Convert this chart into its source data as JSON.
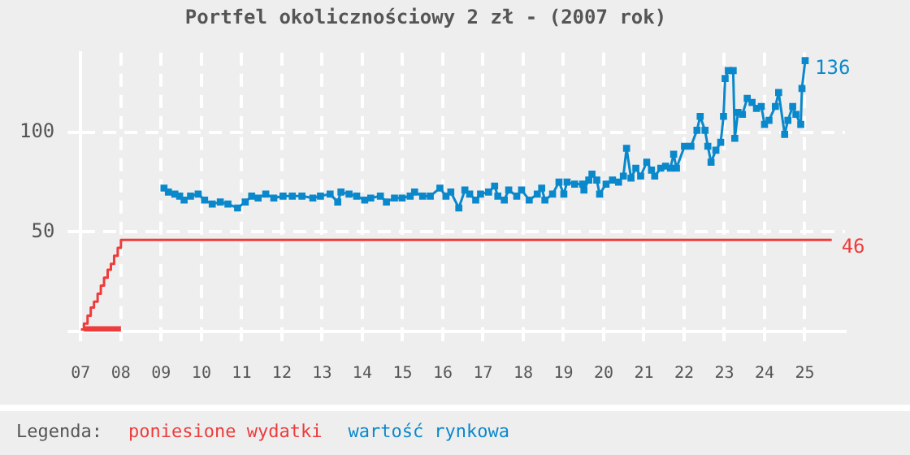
{
  "chart_data": {
    "type": "line",
    "title": "Portfel okolicznościowy 2 zł - (2007 rok)",
    "legend_title": "Legenda:",
    "legend": "bottom",
    "grid": true,
    "marker": "square",
    "line_style": "solid",
    "xlim": [
      2007,
      2026
    ],
    "xticks": [
      {
        "value": 2007,
        "label": "07"
      },
      {
        "value": 2008,
        "label": "08"
      },
      {
        "value": 2009,
        "label": "09"
      },
      {
        "value": 2010,
        "label": "10"
      },
      {
        "value": 2011,
        "label": "11"
      },
      {
        "value": 2012,
        "label": "12"
      },
      {
        "value": 2013,
        "label": "13"
      },
      {
        "value": 2014,
        "label": "14"
      },
      {
        "value": 2015,
        "label": "15"
      },
      {
        "value": 2016,
        "label": "16"
      },
      {
        "value": 2017,
        "label": "17"
      },
      {
        "value": 2018,
        "label": "18"
      },
      {
        "value": 2019,
        "label": "19"
      },
      {
        "value": 2020,
        "label": "20"
      },
      {
        "value": 2021,
        "label": "21"
      },
      {
        "value": 2022,
        "label": "22"
      },
      {
        "value": 2023,
        "label": "23"
      },
      {
        "value": 2024,
        "label": "24"
      },
      {
        "value": 2025,
        "label": "25"
      }
    ],
    "ylim": [
      0,
      140
    ],
    "yticks": [
      {
        "value": 0,
        "label": null
      },
      50,
      100
    ],
    "series": [
      {
        "type": "step",
        "marker": "none",
        "color": "#ee3b3b",
        "x": [
          2007.08,
          2008
        ],
        "values": [
          1,
          1
        ]
      },
      {
        "type": "step",
        "marker": "none",
        "name": "poniesione wydatki",
        "color": "#ee3b3b",
        "x": [
          2007,
          2007.08,
          2007.17,
          2007.25,
          2007.33,
          2007.42,
          2007.5,
          2007.58,
          2007.67,
          2007.75,
          2007.83,
          2007.92,
          2008,
          2025.67
        ],
        "values": [
          1,
          4,
          8,
          12,
          15,
          19,
          23,
          27,
          31,
          34,
          38,
          42,
          46,
          46
        ],
        "value_labels": [
          null,
          null,
          null,
          null,
          null,
          null,
          null,
          null,
          null,
          null,
          null,
          null,
          null,
          "46"
        ]
      },
      {
        "name": "wartość rynkowa",
        "color": "#0a88cc",
        "x": [
          2009.07,
          2009.18,
          2009.34,
          2009.46,
          2009.57,
          2009.73,
          2009.92,
          2010.08,
          2010.27,
          2010.47,
          2010.66,
          2010.9,
          2011.09,
          2011.25,
          2011.41,
          2011.6,
          2011.8,
          2012.03,
          2012.26,
          2012.5,
          2012.77,
          2012.96,
          2013.2,
          2013.39,
          2013.47,
          2013.67,
          2013.86,
          2014.06,
          2014.21,
          2014.45,
          2014.6,
          2014.8,
          2014.99,
          2015.19,
          2015.3,
          2015.5,
          2015.69,
          2015.93,
          2016.08,
          2016.2,
          2016.4,
          2016.55,
          2016.67,
          2016.82,
          2016.94,
          2017.14,
          2017.29,
          2017.37,
          2017.53,
          2017.64,
          2017.84,
          2017.96,
          2018.15,
          2018.35,
          2018.46,
          2018.54,
          2018.73,
          2018.89,
          2019.01,
          2019.09,
          2019.28,
          2019.48,
          2019.51,
          2019.63,
          2019.71,
          2019.83,
          2019.9,
          2020.06,
          2020.22,
          2020.37,
          2020.49,
          2020.57,
          2020.68,
          2020.8,
          2020.92,
          2021.07,
          2021.19,
          2021.27,
          2021.42,
          2021.54,
          2021.66,
          2021.74,
          2021.81,
          2022.01,
          2022.17,
          2022.32,
          2022.4,
          2022.52,
          2022.59,
          2022.67,
          2022.79,
          2022.91,
          2022.98,
          2023.02,
          2023.1,
          2023.22,
          2023.26,
          2023.34,
          2023.45,
          2023.57,
          2023.69,
          2023.8,
          2023.92,
          2024,
          2024.11,
          2024.27,
          2024.35,
          2024.5,
          2024.58,
          2024.7,
          2024.78,
          2024.9,
          2024.93,
          2025.01
        ],
        "values": [
          72,
          70,
          69,
          68,
          66,
          68,
          69,
          66,
          64,
          65,
          64,
          62,
          65,
          68,
          67,
          69,
          67,
          68,
          68,
          68,
          67,
          68,
          69,
          65,
          70,
          69,
          68,
          66,
          67,
          68,
          65,
          67,
          67,
          68,
          70,
          68,
          68,
          72,
          68,
          70,
          62,
          71,
          69,
          66,
          69,
          70,
          73,
          68,
          66,
          71,
          68,
          71,
          66,
          69,
          72,
          66,
          69,
          75,
          69,
          75,
          74,
          74,
          71,
          76,
          79,
          76,
          69,
          74,
          76,
          75,
          78,
          92,
          77,
          82,
          78,
          85,
          81,
          78,
          82,
          83,
          82,
          89,
          82,
          93,
          93,
          101,
          108,
          101,
          93,
          85,
          91,
          95,
          108,
          127,
          131,
          131,
          97,
          110,
          109,
          117,
          115,
          112,
          113,
          104,
          106,
          113,
          120,
          99,
          106,
          113,
          109,
          104,
          122,
          136
        ],
        "value_labels": [
          null,
          null,
          null,
          null,
          null,
          null,
          null,
          null,
          null,
          null,
          null,
          null,
          null,
          null,
          null,
          null,
          null,
          null,
          null,
          null,
          null,
          null,
          null,
          null,
          null,
          null,
          null,
          null,
          null,
          null,
          null,
          null,
          null,
          null,
          null,
          null,
          null,
          null,
          null,
          null,
          null,
          null,
          null,
          null,
          null,
          null,
          null,
          null,
          null,
          null,
          null,
          null,
          null,
          null,
          null,
          null,
          null,
          null,
          null,
          null,
          null,
          null,
          null,
          null,
          null,
          null,
          null,
          null,
          null,
          null,
          null,
          null,
          null,
          null,
          null,
          null,
          null,
          null,
          null,
          null,
          null,
          null,
          null,
          null,
          null,
          null,
          null,
          null,
          null,
          null,
          null,
          null,
          null,
          null,
          null,
          null,
          null,
          null,
          null,
          null,
          null,
          null,
          null,
          null,
          null,
          null,
          null,
          null,
          null,
          null,
          null,
          null,
          null,
          "136"
        ]
      }
    ]
  }
}
